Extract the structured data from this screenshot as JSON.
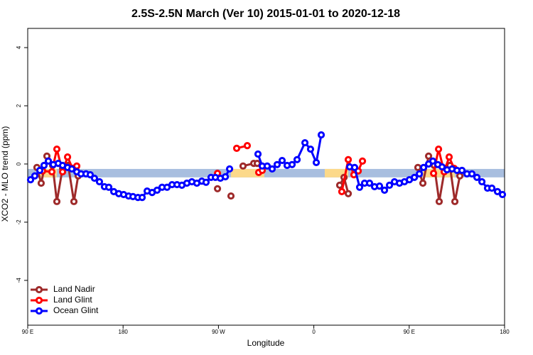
{
  "chart_data": {
    "type": "scatter-line",
    "title": "2.5S-2.5N March (Ver 10)   2015-01-01 to 2020-12-18",
    "x_label": "Longitude",
    "y_label": "XCO2 - MLO trend (ppm)",
    "xlim": [
      90,
      540
    ],
    "ylim": [
      -5.54,
      4.66
    ],
    "xticks": [
      {
        "value": 90,
        "label": "90 E"
      },
      180,
      {
        "value": 270,
        "label": "90 W"
      },
      {
        "value": 360,
        "label": "0"
      },
      {
        "value": 450,
        "label": "90 E"
      },
      {
        "value": 540,
        "label": "180"
      }
    ],
    "yticks": [
      -4,
      -2,
      0,
      2,
      4
    ],
    "legend": "bottom-left",
    "bands": [
      {
        "color": "#a8bedf",
        "x": [
          90,
          540
        ],
        "y": [
          -0.46,
          -0.17
        ]
      },
      {
        "color": "#fcd98a",
        "x": [
          100.7,
          117.5
        ],
        "y": [
          -0.46,
          -0.17
        ]
      },
      {
        "color": "#fcd98a",
        "x": [
          281.8,
          313.3
        ],
        "y": [
          -0.46,
          -0.17
        ]
      },
      {
        "color": "#fcd98a",
        "x": [
          370.3,
          392.5
        ],
        "y": [
          -0.46,
          -0.17
        ]
      },
      {
        "color": "#fcd98a",
        "x": [
          462.9,
          493.1
        ],
        "y": [
          -0.46,
          -0.17
        ]
      }
    ],
    "series": [
      {
        "name": "Land Nadir",
        "color": "#9e2a2a",
        "x": [
          98.7,
          102.7,
          108.1,
          113.5,
          117.5,
          122.9,
          128.2,
          133.6,
          137.6,
          null,
          269.1,
          null,
          281.8,
          null,
          293.2,
          303.3,
          306.6,
          null,
          384.4,
          388.5,
          392.5,
          null,
          458.2,
          462.9,
          468.3,
          473.6,
          478.3,
          483.7,
          488.4,
          493.1,
          497.8
        ],
        "values": [
          -0.12,
          -0.66,
          0.27,
          -0.05,
          -1.29,
          -0.15,
          -0.05,
          -1.29,
          -0.41,
          null,
          -0.85,
          null,
          -1.1,
          null,
          -0.07,
          0.02,
          0.02,
          null,
          -0.73,
          -0.46,
          -1.02,
          null,
          -0.12,
          -0.66,
          0.27,
          -0.05,
          -1.29,
          -0.15,
          -0.05,
          -1.29,
          -0.41
        ]
      },
      {
        "name": "Land Glint",
        "color": "#ff0000",
        "x": [
          104.1,
          112.8,
          117.5,
          122.9,
          127.6,
          132.3,
          136.3,
          null,
          269.1,
          null,
          287.2,
          297.2,
          null,
          308.0,
          311.3,
          null,
          386.4,
          392.5,
          397.8,
          401.9,
          405.9,
          null,
          473.0,
          477.7,
          483.0,
          487.7,
          492.4
        ],
        "values": [
          -0.24,
          -0.27,
          0.51,
          -0.27,
          0.24,
          -0.15,
          -0.07,
          null,
          -0.32,
          null,
          0.54,
          0.63,
          null,
          -0.29,
          -0.22,
          null,
          -0.95,
          0.15,
          -0.37,
          -0.24,
          0.1,
          null,
          -0.32,
          0.51,
          -0.27,
          0.24,
          -0.15
        ]
      },
      {
        "name": "Ocean Glint",
        "color": "#0000ff",
        "x": [
          92.7,
          96.7,
          101.4,
          105.4,
          109.5,
          114.1,
          118.8,
          122.9,
          127.6,
          131.6,
          136.3,
          140.3,
          145.0,
          149.0,
          153.0,
          157.7,
          162.4,
          166.5,
          171.2,
          175.9,
          180.5,
          185.2,
          189.3,
          194.0,
          198.0,
          202.7,
          207.4,
          212.1,
          216.8,
          221.5,
          226.2,
          230.9,
          235.5,
          240.2,
          244.9,
          249.6,
          254.3,
          258.3,
          263.0,
          267.1,
          271.8,
          276.5,
          280.5,
          null,
          307.3,
          311.3,
          316.0,
          320.7,
          325.4,
          330.1,
          334.8,
          339.5,
          344.2,
          351.6,
          356.9,
          362.3,
          367.0,
          null,
          393.8,
          398.5,
          403.2,
          407.9,
          412.6,
          417.3,
          422.0,
          426.7,
          431.4,
          436.1,
          440.8,
          445.5,
          450.2,
          454.9,
          459.6,
          463.6,
          468.3,
          472.3,
          477.0,
          481.0,
          485.7,
          490.4,
          495.1,
          499.8,
          504.5,
          509.2,
          513.9,
          518.6,
          523.9,
          528.0,
          533.3,
          538.0
        ],
        "values": [
          -0.54,
          -0.41,
          -0.22,
          -0.05,
          0.1,
          -0.02,
          0.02,
          -0.05,
          -0.12,
          -0.17,
          -0.27,
          -0.34,
          -0.34,
          -0.37,
          -0.49,
          -0.61,
          -0.78,
          -0.8,
          -0.95,
          -1.02,
          -1.05,
          -1.1,
          -1.12,
          -1.15,
          -1.15,
          -0.93,
          -0.98,
          -0.9,
          -0.8,
          -0.8,
          -0.71,
          -0.71,
          -0.73,
          -0.66,
          -0.61,
          -0.66,
          -0.59,
          -0.63,
          -0.46,
          -0.46,
          -0.49,
          -0.44,
          -0.17,
          null,
          0.34,
          -0.07,
          -0.07,
          -0.17,
          -0.02,
          0.12,
          -0.05,
          -0.02,
          0.15,
          0.73,
          0.51,
          0.05,
          1.0,
          null,
          -0.1,
          -0.12,
          -0.8,
          -0.66,
          -0.66,
          -0.78,
          -0.76,
          -0.9,
          -0.73,
          -0.61,
          -0.66,
          -0.61,
          -0.54,
          -0.46,
          -0.34,
          -0.12,
          0.0,
          0.1,
          -0.02,
          -0.1,
          -0.2,
          -0.17,
          -0.22,
          -0.22,
          -0.34,
          -0.34,
          -0.46,
          -0.61,
          -0.83,
          -0.83,
          -0.95,
          -1.05
        ]
      }
    ]
  }
}
